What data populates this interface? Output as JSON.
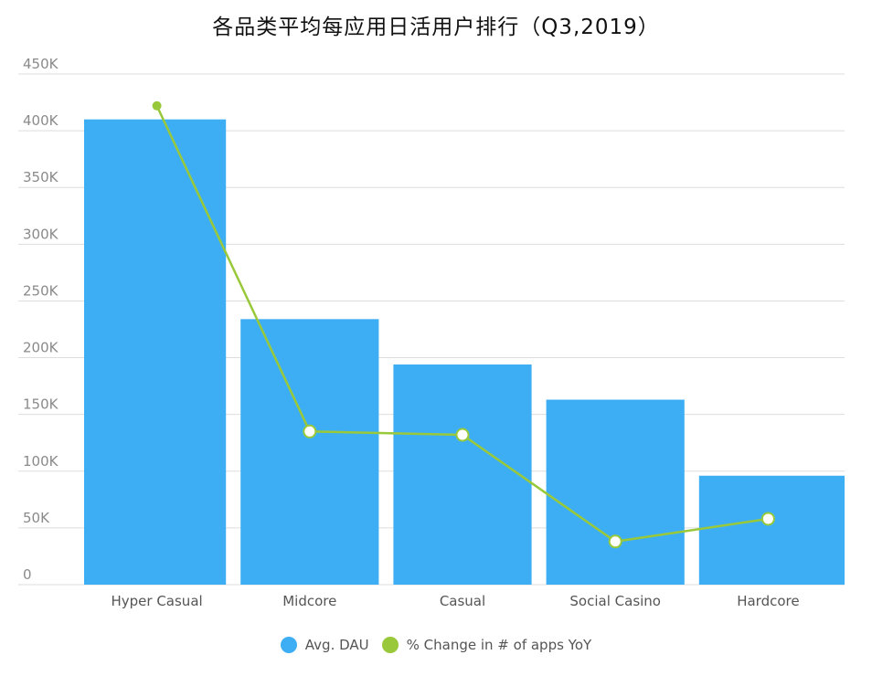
{
  "title": "各品类平均每应用日活用户排行（Q3,2019）",
  "colors": {
    "bar": "#3eaef4",
    "line": "#99c93a",
    "grid": "#dddddd"
  },
  "chart_data": {
    "type": "bar",
    "categories": [
      "Hyper Casual",
      "Midcore",
      "Casual",
      "Social Casino",
      "Hardcore"
    ],
    "yticks": [
      "0",
      "50K",
      "100K",
      "150K",
      "200K",
      "250K",
      "300K",
      "350K",
      "400K",
      "450K"
    ],
    "ylim": [
      0,
      450000
    ],
    "grid": true,
    "legend_position": "bottom-center",
    "series": [
      {
        "name": "Avg. DAU",
        "type": "bar",
        "values": [
          410000,
          234000,
          194000,
          163000,
          96000
        ]
      },
      {
        "name": "% Change in # of apps YoY",
        "type": "line",
        "values": [
          422000,
          135000,
          132000,
          38000,
          58000
        ]
      }
    ]
  }
}
